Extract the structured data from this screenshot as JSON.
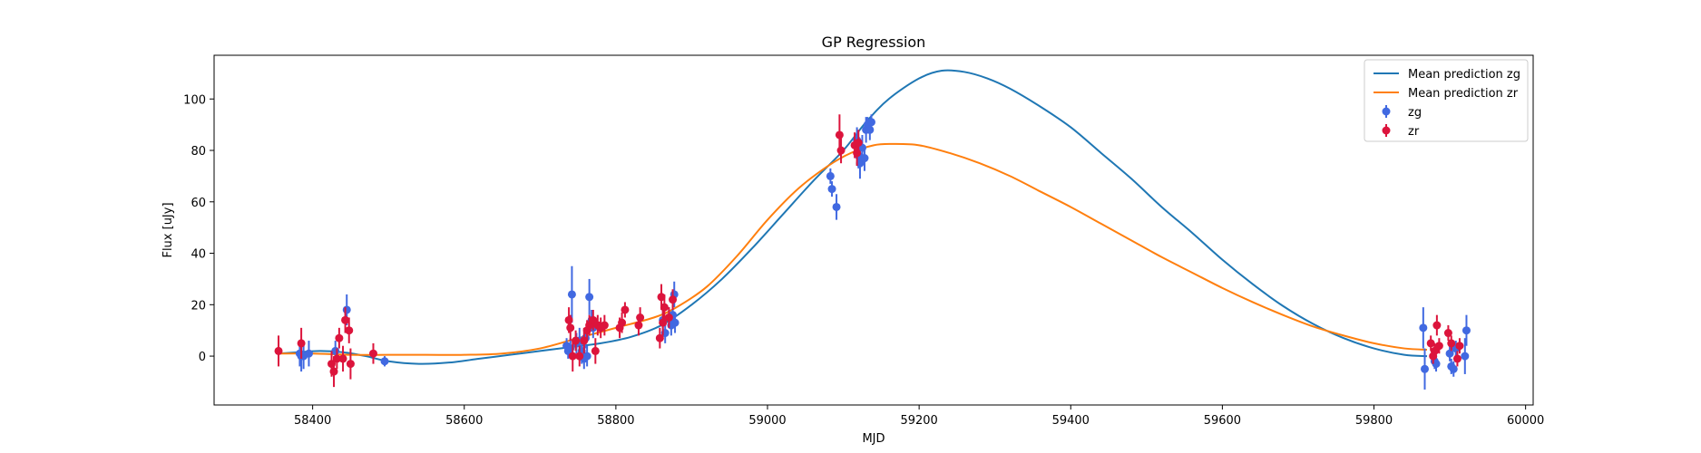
{
  "chart_data": {
    "type": "scatter",
    "title": "GP Regression",
    "xlabel": "MJD",
    "ylabel": "Flux [uJy]",
    "xlim": [
      58270,
      60010
    ],
    "ylim": [
      -19,
      117
    ],
    "xticks": [
      58400,
      58600,
      58800,
      59000,
      59200,
      59400,
      59600,
      59800,
      60000
    ],
    "yticks": [
      0,
      20,
      40,
      60,
      80,
      100
    ],
    "grid": false,
    "legend_position": "top-right",
    "lines": [
      {
        "name": "Mean prediction zg",
        "color": "#1f77b4",
        "x": [
          58355,
          58380,
          58410,
          58440,
          58470,
          58500,
          58540,
          58580,
          58620,
          58660,
          58700,
          58740,
          58780,
          58820,
          58860,
          58900,
          58940,
          58980,
          59020,
          59060,
          59100,
          59130,
          59160,
          59200,
          59230,
          59260,
          59290,
          59320,
          59360,
          59400,
          59440,
          59480,
          59520,
          59560,
          59600,
          59640,
          59680,
          59720,
          59760,
          59800,
          59840,
          59870
        ],
        "y": [
          1,
          1.5,
          2,
          1.5,
          0,
          -2,
          -3,
          -2.5,
          -1,
          0.5,
          2,
          3.5,
          5,
          7.5,
          12,
          20,
          30,
          42,
          55,
          68,
          80,
          91,
          100,
          108,
          111,
          110.5,
          108,
          104,
          97,
          89,
          79,
          69,
          58,
          48,
          37.5,
          28,
          19.5,
          12.5,
          7,
          3,
          0.5,
          0
        ]
      },
      {
        "name": "Mean prediction zr",
        "color": "#ff7f0e",
        "x": [
          58355,
          58400,
          58450,
          58500,
          58550,
          58600,
          58650,
          58700,
          58750,
          58800,
          58850,
          58880,
          58920,
          58960,
          59000,
          59040,
          59080,
          59110,
          59140,
          59165,
          59200,
          59240,
          59280,
          59320,
          59360,
          59400,
          59440,
          59480,
          59520,
          59560,
          59600,
          59640,
          59680,
          59720,
          59760,
          59800,
          59840,
          59870
        ],
        "y": [
          1,
          1,
          0.5,
          0.5,
          0.5,
          0.5,
          1,
          3,
          7,
          11,
          15,
          19,
          27,
          39,
          53,
          65,
          74,
          79,
          82,
          82.5,
          82,
          79,
          75,
          70,
          64,
          58,
          51.5,
          45,
          38.5,
          32.5,
          26.5,
          21,
          16,
          11.5,
          8,
          5,
          3,
          2.5
        ]
      }
    ],
    "series": [
      {
        "name": "zg",
        "color": "#4169e1",
        "points": [
          [
            58383,
            1,
            5
          ],
          [
            58385,
            0,
            6
          ],
          [
            58388,
            0,
            5
          ],
          [
            58395,
            1,
            5
          ],
          [
            58430,
            2,
            4
          ],
          [
            58445,
            18,
            6
          ],
          [
            58495,
            -2,
            2
          ],
          [
            58735,
            4,
            3
          ],
          [
            58737,
            2,
            3
          ],
          [
            58740,
            3,
            4
          ],
          [
            58742,
            24,
            11
          ],
          [
            58748,
            5,
            4
          ],
          [
            58752,
            6,
            5
          ],
          [
            58755,
            2,
            5
          ],
          [
            58758,
            -1,
            4
          ],
          [
            58760,
            7,
            4
          ],
          [
            58762,
            0,
            4
          ],
          [
            58765,
            23,
            7
          ],
          [
            58768,
            14,
            4
          ],
          [
            58770,
            11,
            4
          ],
          [
            58862,
            14,
            4
          ],
          [
            58865,
            9,
            4
          ],
          [
            58870,
            15,
            4
          ],
          [
            58873,
            12,
            4
          ],
          [
            58875,
            16,
            4
          ],
          [
            58877,
            24,
            5
          ],
          [
            58878,
            13,
            4
          ],
          [
            59083,
            70,
            3
          ],
          [
            59085,
            65,
            3
          ],
          [
            59091,
            58,
            5
          ],
          [
            59118,
            84,
            5
          ],
          [
            59120,
            78,
            5
          ],
          [
            59122,
            75,
            6
          ],
          [
            59125,
            81,
            5
          ],
          [
            59128,
            77,
            5
          ],
          [
            59130,
            88,
            5
          ],
          [
            59132,
            90,
            3
          ],
          [
            59135,
            88,
            4
          ],
          [
            59137,
            91,
            3
          ],
          [
            59865,
            11,
            8
          ],
          [
            59867,
            -5,
            8
          ],
          [
            59880,
            -2,
            3
          ],
          [
            59882,
            -3,
            3
          ],
          [
            59900,
            1,
            3
          ],
          [
            59902,
            -4,
            3
          ],
          [
            59905,
            -5,
            3
          ],
          [
            59908,
            3,
            3
          ],
          [
            59920,
            0,
            7
          ],
          [
            59922,
            10,
            6
          ]
        ]
      },
      {
        "name": "zr",
        "color": "#dc143c",
        "points": [
          [
            58355,
            2,
            6
          ],
          [
            58385,
            5,
            6
          ],
          [
            58425,
            -3,
            5
          ],
          [
            58428,
            -6,
            6
          ],
          [
            58432,
            -1,
            4
          ],
          [
            58435,
            7,
            4
          ],
          [
            58440,
            -1,
            5
          ],
          [
            58443,
            14,
            5
          ],
          [
            58448,
            10,
            5
          ],
          [
            58450,
            -3,
            6
          ],
          [
            58480,
            1,
            4
          ],
          [
            58738,
            14,
            5
          ],
          [
            58740,
            11,
            5
          ],
          [
            58743,
            0,
            6
          ],
          [
            58747,
            6,
            4
          ],
          [
            58752,
            0,
            4
          ],
          [
            58758,
            6,
            5
          ],
          [
            58762,
            10,
            4
          ],
          [
            58765,
            12,
            4
          ],
          [
            58770,
            14,
            4
          ],
          [
            58773,
            2,
            5
          ],
          [
            58776,
            12,
            4
          ],
          [
            58780,
            11,
            4
          ],
          [
            58785,
            12,
            4
          ],
          [
            58805,
            11,
            4
          ],
          [
            58808,
            13,
            4
          ],
          [
            58812,
            18,
            3
          ],
          [
            58830,
            12,
            4
          ],
          [
            58832,
            15,
            4
          ],
          [
            58858,
            7,
            4
          ],
          [
            58860,
            23,
            5
          ],
          [
            58862,
            13,
            5
          ],
          [
            58864,
            19,
            5
          ],
          [
            58870,
            15,
            4
          ],
          [
            58875,
            22,
            4
          ],
          [
            59095,
            86,
            8
          ],
          [
            59097,
            80,
            5
          ],
          [
            59115,
            82,
            5
          ],
          [
            59118,
            79,
            5
          ],
          [
            59120,
            83,
            5
          ],
          [
            59875,
            5,
            3
          ],
          [
            59878,
            0,
            3
          ],
          [
            59880,
            2,
            3
          ],
          [
            59883,
            12,
            4
          ],
          [
            59886,
            4,
            3
          ],
          [
            59898,
            9,
            3
          ],
          [
            59902,
            5,
            3
          ],
          [
            59910,
            -1,
            3
          ],
          [
            59913,
            4,
            3
          ]
        ]
      }
    ]
  }
}
